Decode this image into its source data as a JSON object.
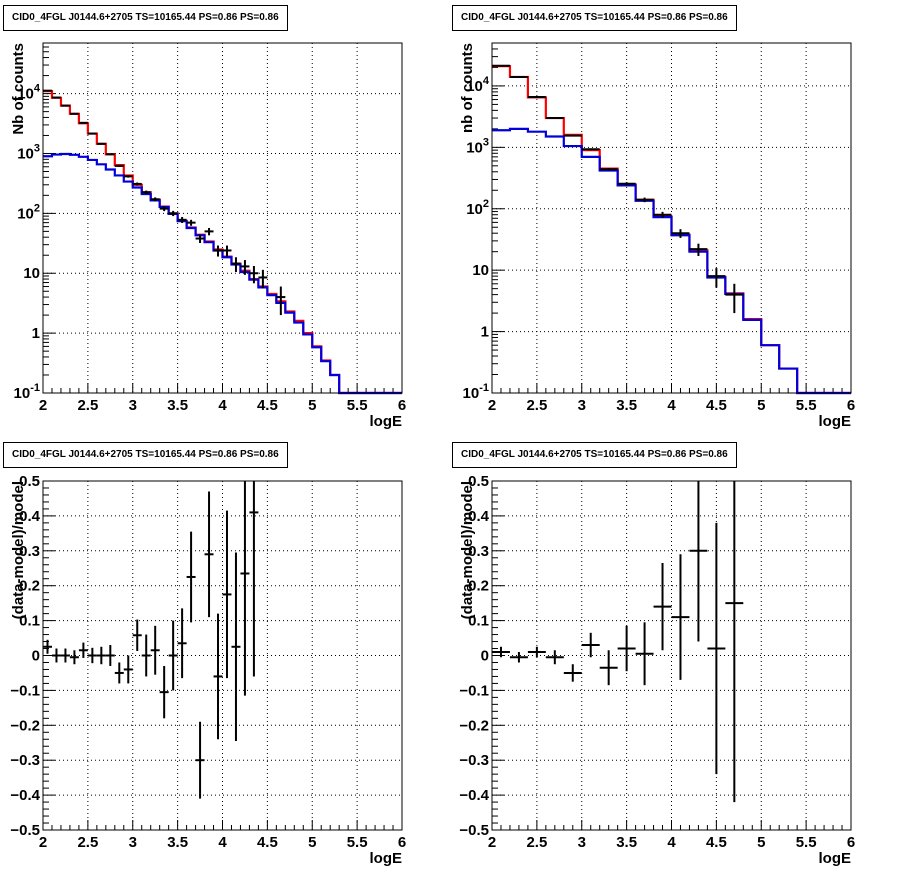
{
  "colors": {
    "model_total": "#ff0000",
    "model_background": "#0000dd",
    "data": "#000000",
    "grid": "#000000"
  },
  "chart_data": [
    {
      "type": "line",
      "title": "CID0_4FGL J0144.6+2705 TS=10165.44 PS=0.86 PS=0.86",
      "xlabel": "logE",
      "ylabel": "Nb of counts",
      "xlim": [
        2,
        6
      ],
      "ylim": [
        0.1,
        70000
      ],
      "log_y": true,
      "grid": true,
      "x_ticks": [
        "2",
        "2.5",
        "3",
        "3.5",
        "4",
        "4.5",
        "5",
        "5.5",
        "6"
      ],
      "y_ticks": [
        {
          "label": "10",
          "sup": "-1",
          "value": 0.1
        },
        {
          "label": "1",
          "sup": "",
          "value": 1
        },
        {
          "label": "10",
          "sup": "",
          "value": 10
        },
        {
          "label": "10",
          "sup": "2",
          "value": 100
        },
        {
          "label": "10",
          "sup": "3",
          "value": 1000
        },
        {
          "label": "10",
          "sup": "4",
          "value": 10000
        }
      ],
      "bin_edges": [
        2,
        2.1,
        2.2,
        2.3,
        2.4,
        2.5,
        2.6,
        2.7,
        2.8,
        2.9,
        3,
        3.1,
        3.2,
        3.3,
        3.4,
        3.5,
        3.6,
        3.7,
        3.8,
        3.9,
        4,
        4.1,
        4.2,
        4.3,
        4.4,
        4.5,
        4.6,
        4.7,
        4.8,
        4.9,
        5,
        5.1,
        5.2,
        5.3,
        5.4,
        5.5,
        5.6,
        5.7,
        5.8,
        5.9,
        6
      ],
      "series": [
        {
          "role": "model_total",
          "style": "step",
          "values": [
            11000,
            8500,
            6300,
            4600,
            3200,
            2150,
            1450,
            970,
            640,
            430,
            300,
            225,
            170,
            130,
            100,
            75,
            58,
            44,
            34,
            25,
            19,
            14.5,
            11,
            8,
            6,
            4.5,
            3.4,
            2.3,
            1.6,
            1.0,
            0.6,
            0.35,
            0.2,
            0.1,
            0.1,
            0.1,
            0.1,
            0.1,
            0.1,
            0.1
          ]
        },
        {
          "role": "model_background",
          "style": "step",
          "values": [
            900,
            960,
            980,
            950,
            880,
            780,
            660,
            540,
            430,
            340,
            270,
            210,
            165,
            128,
            98,
            74,
            57,
            43,
            33,
            24,
            18.5,
            14,
            10.5,
            7.8,
            5.8,
            4.3,
            3.2,
            2.2,
            1.5,
            0.95,
            0.58,
            0.34,
            0.2,
            0.1,
            0.1,
            0.1,
            0.1,
            0.1,
            0.1,
            0.1
          ]
        },
        {
          "role": "data",
          "style": "errorbar",
          "points": [
            {
              "x": 2.05,
              "y": 11200,
              "err": 110
            },
            {
              "x": 2.15,
              "y": 8600,
              "err": 95
            },
            {
              "x": 2.25,
              "y": 6300,
              "err": 80
            },
            {
              "x": 2.35,
              "y": 4600,
              "err": 70
            },
            {
              "x": 2.45,
              "y": 3250,
              "err": 57
            },
            {
              "x": 2.55,
              "y": 2150,
              "err": 46
            },
            {
              "x": 2.65,
              "y": 1450,
              "err": 38
            },
            {
              "x": 2.75,
              "y": 970,
              "err": 31
            },
            {
              "x": 2.85,
              "y": 620,
              "err": 25
            },
            {
              "x": 2.95,
              "y": 415,
              "err": 20
            },
            {
              "x": 3.05,
              "y": 310,
              "err": 18
            },
            {
              "x": 3.15,
              "y": 225,
              "err": 15
            },
            {
              "x": 3.25,
              "y": 172,
              "err": 13
            },
            {
              "x": 3.35,
              "y": 120,
              "err": 11
            },
            {
              "x": 3.45,
              "y": 100,
              "err": 10
            },
            {
              "x": 3.55,
              "y": 78,
              "err": 9
            },
            {
              "x": 3.65,
              "y": 70,
              "err": 8
            },
            {
              "x": 3.75,
              "y": 38,
              "err": 6
            },
            {
              "x": 3.85,
              "y": 50,
              "err": 7
            },
            {
              "x": 3.95,
              "y": 24,
              "err": 5
            },
            {
              "x": 4.05,
              "y": 24,
              "err": 5
            },
            {
              "x": 4.15,
              "y": 14.5,
              "err": 4
            },
            {
              "x": 4.25,
              "y": 13,
              "err": 3.6
            },
            {
              "x": 4.35,
              "y": 10,
              "err": 3.2
            },
            {
              "x": 4.45,
              "y": 8.5,
              "err": 2.9
            },
            {
              "x": 4.65,
              "y": 4,
              "err": 2
            }
          ]
        }
      ]
    },
    {
      "type": "line",
      "title": "CID0_4FGL J0144.6+2705 TS=10165.44 PS=0.86 PS=0.86",
      "xlabel": "logE",
      "ylabel": "nb of counts",
      "xlim": [
        2,
        6
      ],
      "ylim": [
        0.1,
        50000
      ],
      "log_y": true,
      "grid": true,
      "x_ticks": [
        "2",
        "2.5",
        "3",
        "3.5",
        "4",
        "4.5",
        "5",
        "5.5",
        "6"
      ],
      "y_ticks": [
        {
          "label": "10",
          "sup": "-1",
          "value": 0.1
        },
        {
          "label": "1",
          "sup": "",
          "value": 1
        },
        {
          "label": "10",
          "sup": "",
          "value": 10
        },
        {
          "label": "10",
          "sup": "2",
          "value": 100
        },
        {
          "label": "10",
          "sup": "3",
          "value": 1000
        },
        {
          "label": "10",
          "sup": "4",
          "value": 10000
        }
      ],
      "bin_edges": [
        2,
        2.2,
        2.4,
        2.6,
        2.8,
        3,
        3.2,
        3.4,
        3.6,
        3.8,
        4,
        4.2,
        4.4,
        4.6,
        4.8,
        5,
        5.2,
        5.4,
        5.6,
        5.8,
        6
      ],
      "series": [
        {
          "role": "model_total",
          "style": "step",
          "values": [
            21000,
            14000,
            6500,
            3000,
            1600,
            900,
            450,
            250,
            140,
            75,
            38,
            21,
            7.8,
            4.2,
            1.6,
            0.6,
            0.25,
            0.1,
            0.1,
            0.1
          ]
        },
        {
          "role": "model_background",
          "style": "step",
          "values": [
            1900,
            2000,
            1800,
            1500,
            1050,
            700,
            420,
            240,
            135,
            73,
            37,
            20,
            7.6,
            4.1,
            1.55,
            0.6,
            0.25,
            0.1,
            0.1,
            0.1
          ]
        },
        {
          "role": "data",
          "style": "errorbar",
          "points": [
            {
              "x": 2.1,
              "y": 21300,
              "err": 150
            },
            {
              "x": 2.3,
              "y": 14000,
              "err": 120
            },
            {
              "x": 2.5,
              "y": 6600,
              "err": 80
            },
            {
              "x": 2.7,
              "y": 3000,
              "err": 55
            },
            {
              "x": 2.9,
              "y": 1550,
              "err": 40
            },
            {
              "x": 3.1,
              "y": 930,
              "err": 30
            },
            {
              "x": 3.3,
              "y": 440,
              "err": 21
            },
            {
              "x": 3.5,
              "y": 255,
              "err": 16
            },
            {
              "x": 3.7,
              "y": 140,
              "err": 12
            },
            {
              "x": 3.9,
              "y": 80,
              "err": 9
            },
            {
              "x": 4.1,
              "y": 40,
              "err": 6.5
            },
            {
              "x": 4.3,
              "y": 22,
              "err": 5
            },
            {
              "x": 4.5,
              "y": 8,
              "err": 2.8
            },
            {
              "x": 4.7,
              "y": 4,
              "err": 2
            }
          ]
        }
      ]
    },
    {
      "type": "scatter",
      "title": "CID0_4FGL J0144.6+2705 TS=10165.44 PS=0.86 PS=0.86",
      "xlabel": "logE",
      "ylabel": "(data-model)/model",
      "xlim": [
        2,
        6
      ],
      "ylim": [
        -0.5,
        0.5
      ],
      "log_y": false,
      "grid": true,
      "x_ticks": [
        "2",
        "2.5",
        "3",
        "3.5",
        "4",
        "4.5",
        "5",
        "5.5",
        "6"
      ],
      "y_ticks": [
        {
          "label": "−0.5",
          "sup": "",
          "value": -0.5
        },
        {
          "label": "−0.4",
          "sup": "",
          "value": -0.4
        },
        {
          "label": "−0.3",
          "sup": "",
          "value": -0.3
        },
        {
          "label": "−0.2",
          "sup": "",
          "value": -0.2
        },
        {
          "label": "−0.1",
          "sup": "",
          "value": -0.1
        },
        {
          "label": "0",
          "sup": "",
          "value": 0
        },
        {
          "label": "0.1",
          "sup": "",
          "value": 0.1
        },
        {
          "label": "0.2",
          "sup": "",
          "value": 0.2
        },
        {
          "label": "0.3",
          "sup": "",
          "value": 0.3
        },
        {
          "label": "0.4",
          "sup": "",
          "value": 0.4
        },
        {
          "label": "0.5",
          "sup": "",
          "value": 0.5
        }
      ],
      "x_half_width": 0.05,
      "series": [
        {
          "role": "data",
          "style": "errorbar",
          "points": [
            {
              "x": 2.05,
              "y": 0.025,
              "err": 0.02
            },
            {
              "x": 2.15,
              "y": 0.0,
              "err": 0.02
            },
            {
              "x": 2.25,
              "y": 0.0,
              "err": 0.02
            },
            {
              "x": 2.35,
              "y": -0.005,
              "err": 0.02
            },
            {
              "x": 2.45,
              "y": 0.015,
              "err": 0.022
            },
            {
              "x": 2.55,
              "y": 0.0,
              "err": 0.022
            },
            {
              "x": 2.65,
              "y": 0.0,
              "err": 0.025
            },
            {
              "x": 2.75,
              "y": 0.0,
              "err": 0.03
            },
            {
              "x": 2.85,
              "y": -0.05,
              "err": 0.03
            },
            {
              "x": 2.95,
              "y": -0.04,
              "err": 0.04
            },
            {
              "x": 3.05,
              "y": 0.058,
              "err": 0.045
            },
            {
              "x": 3.15,
              "y": 0.0,
              "err": 0.06
            },
            {
              "x": 3.25,
              "y": 0.015,
              "err": 0.07
            },
            {
              "x": 3.35,
              "y": -0.105,
              "err": 0.075
            },
            {
              "x": 3.45,
              "y": 0.0,
              "err": 0.1
            },
            {
              "x": 3.55,
              "y": 0.035,
              "err": 0.1
            },
            {
              "x": 3.65,
              "y": 0.225,
              "err": 0.13
            },
            {
              "x": 3.75,
              "y": -0.3,
              "err": 0.11
            },
            {
              "x": 3.85,
              "y": 0.29,
              "err": 0.18
            },
            {
              "x": 3.95,
              "y": -0.06,
              "err": 0.18
            },
            {
              "x": 4.05,
              "y": 0.175,
              "err": 0.24
            },
            {
              "x": 4.15,
              "y": 0.025,
              "err": 0.27
            },
            {
              "x": 4.25,
              "y": 0.235,
              "err": 0.35
            },
            {
              "x": 4.35,
              "y": 0.41,
              "err": 0.47
            }
          ]
        }
      ]
    },
    {
      "type": "scatter",
      "title": "CID0_4FGL J0144.6+2705 TS=10165.44 PS=0.86 PS=0.86",
      "xlabel": "logE",
      "ylabel": "(data-model)/model",
      "xlim": [
        2,
        6
      ],
      "ylim": [
        -0.5,
        0.5
      ],
      "log_y": false,
      "grid": true,
      "x_ticks": [
        "2",
        "2.5",
        "3",
        "3.5",
        "4",
        "4.5",
        "5",
        "5.5",
        "6"
      ],
      "y_ticks": [
        {
          "label": "−0.5",
          "sup": "",
          "value": -0.5
        },
        {
          "label": "−0.4",
          "sup": "",
          "value": -0.4
        },
        {
          "label": "−0.3",
          "sup": "",
          "value": -0.3
        },
        {
          "label": "−0.2",
          "sup": "",
          "value": -0.2
        },
        {
          "label": "−0.1",
          "sup": "",
          "value": -0.1
        },
        {
          "label": "0",
          "sup": "",
          "value": 0
        },
        {
          "label": "0.1",
          "sup": "",
          "value": 0.1
        },
        {
          "label": "0.2",
          "sup": "",
          "value": 0.2
        },
        {
          "label": "0.3",
          "sup": "",
          "value": 0.3
        },
        {
          "label": "0.4",
          "sup": "",
          "value": 0.4
        },
        {
          "label": "0.5",
          "sup": "",
          "value": 0.5
        }
      ],
      "x_half_width": 0.1,
      "series": [
        {
          "role": "data",
          "style": "errorbar",
          "points": [
            {
              "x": 2.1,
              "y": 0.01,
              "err": 0.015
            },
            {
              "x": 2.3,
              "y": -0.005,
              "err": 0.015
            },
            {
              "x": 2.5,
              "y": 0.01,
              "err": 0.015
            },
            {
              "x": 2.7,
              "y": -0.005,
              "err": 0.02
            },
            {
              "x": 2.9,
              "y": -0.05,
              "err": 0.025
            },
            {
              "x": 3.1,
              "y": 0.03,
              "err": 0.035
            },
            {
              "x": 3.3,
              "y": -0.035,
              "err": 0.05
            },
            {
              "x": 3.5,
              "y": 0.02,
              "err": 0.065
            },
            {
              "x": 3.7,
              "y": 0.005,
              "err": 0.09
            },
            {
              "x": 3.9,
              "y": 0.14,
              "err": 0.125
            },
            {
              "x": 4.1,
              "y": 0.11,
              "err": 0.18
            },
            {
              "x": 4.3,
              "y": 0.3,
              "err": 0.26
            },
            {
              "x": 4.5,
              "y": 0.02,
              "err": 0.36
            },
            {
              "x": 4.7,
              "y": 0.15,
              "err": 0.57
            }
          ]
        }
      ]
    }
  ]
}
